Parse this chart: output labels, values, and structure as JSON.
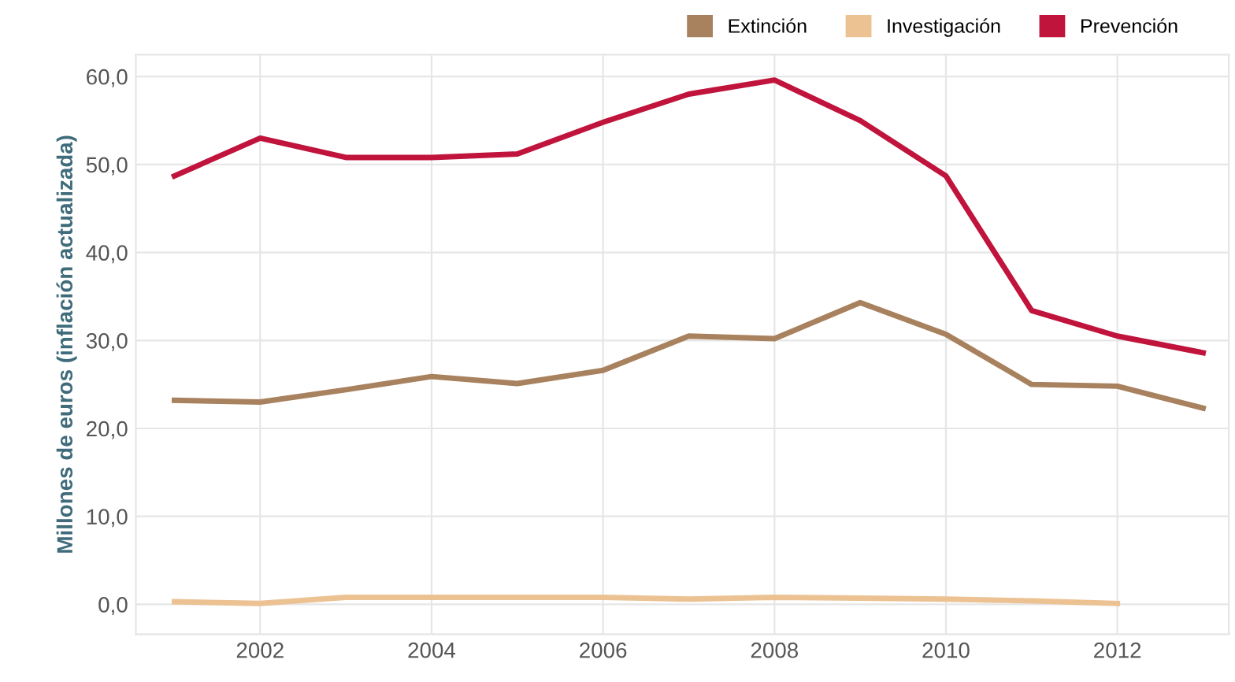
{
  "chart_data": {
    "type": "line",
    "ylabel": "Millones de euros (inflación actualizada)",
    "x": [
      2001,
      2002,
      2003,
      2004,
      2005,
      2006,
      2007,
      2008,
      2009,
      2010,
      2011,
      2012,
      2013
    ],
    "series": [
      {
        "name": "Extinción",
        "color": "#a8825e",
        "values": [
          23.2,
          23.0,
          24.4,
          25.9,
          25.1,
          26.6,
          30.5,
          30.2,
          34.3,
          30.7,
          25.0,
          24.8,
          22.3
        ]
      },
      {
        "name": "Investigación",
        "color": "#ecc293",
        "values": [
          0.3,
          0.1,
          0.8,
          0.8,
          0.8,
          0.8,
          0.6,
          0.8,
          0.7,
          0.6,
          0.4,
          0.1,
          null
        ]
      },
      {
        "name": "Prevención",
        "color": "#c0143c",
        "values": [
          48.7,
          53.0,
          50.8,
          50.8,
          51.2,
          54.8,
          58.0,
          59.6,
          55.0,
          48.7,
          33.4,
          30.5,
          28.6
        ]
      }
    ],
    "xlim": [
      2000.55,
      2013.3
    ],
    "xticks": [
      2002,
      2004,
      2006,
      2008,
      2010,
      2012
    ],
    "ylim": [
      -3.4,
      62.5
    ],
    "yticks": [
      {
        "value": 0,
        "label": "0,0"
      },
      {
        "value": 10,
        "label": "10,0"
      },
      {
        "value": 20,
        "label": "20,0"
      },
      {
        "value": 30,
        "label": "30,0"
      },
      {
        "value": 40,
        "label": "40,0"
      },
      {
        "value": 50,
        "label": "50,0"
      },
      {
        "value": 60,
        "label": "60,0"
      }
    ],
    "grid": true,
    "legend": "top right",
    "marker": "none",
    "line_style": "solid"
  }
}
